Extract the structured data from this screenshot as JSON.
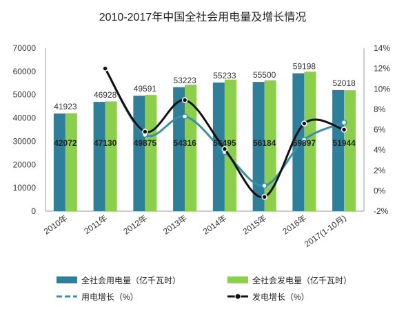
{
  "chart_data": {
    "type": "bar",
    "title": "2010-2017年中国全社会用电量及增长情况",
    "categories": [
      "2010年",
      "2011年",
      "2012年",
      "2013年",
      "2014年",
      "2015年",
      "2016年",
      "2017(1-10月)"
    ],
    "left_axis": {
      "ylim": [
        0,
        70000
      ],
      "ticks": [
        0,
        10000,
        20000,
        30000,
        40000,
        50000,
        60000,
        70000
      ]
    },
    "right_axis": {
      "ylim": [
        -2,
        14
      ],
      "ticks": [
        "-2%",
        "0%",
        "2%",
        "4%",
        "6%",
        "8%",
        "10%",
        "12%",
        "14%"
      ]
    },
    "series": [
      {
        "name": "全社会用电量（亿千瓦时）",
        "type": "bar",
        "axis": "left",
        "color": "#2e7f9a",
        "values": [
          41923,
          46928,
          49591,
          53223,
          55233,
          55500,
          59198,
          52018
        ]
      },
      {
        "name": "全社会发电量（亿千瓦时）",
        "type": "bar",
        "axis": "left",
        "color": "#8ccf4d",
        "values": [
          42072,
          47130,
          49875,
          54316,
          56495,
          56184,
          59897,
          51944
        ]
      },
      {
        "name": "用电增长（%）",
        "type": "line",
        "axis": "right",
        "color": "#3a8fa8",
        "dashed_legend": true,
        "values": [
          null,
          12.0,
          5.5,
          7.3,
          3.8,
          0.5,
          5.0,
          6.7
        ]
      },
      {
        "name": "发电增长（%）",
        "type": "line",
        "axis": "right",
        "color": "#111111",
        "values": [
          null,
          12.0,
          5.8,
          8.9,
          4.1,
          -0.6,
          6.6,
          6.0
        ]
      }
    ]
  }
}
